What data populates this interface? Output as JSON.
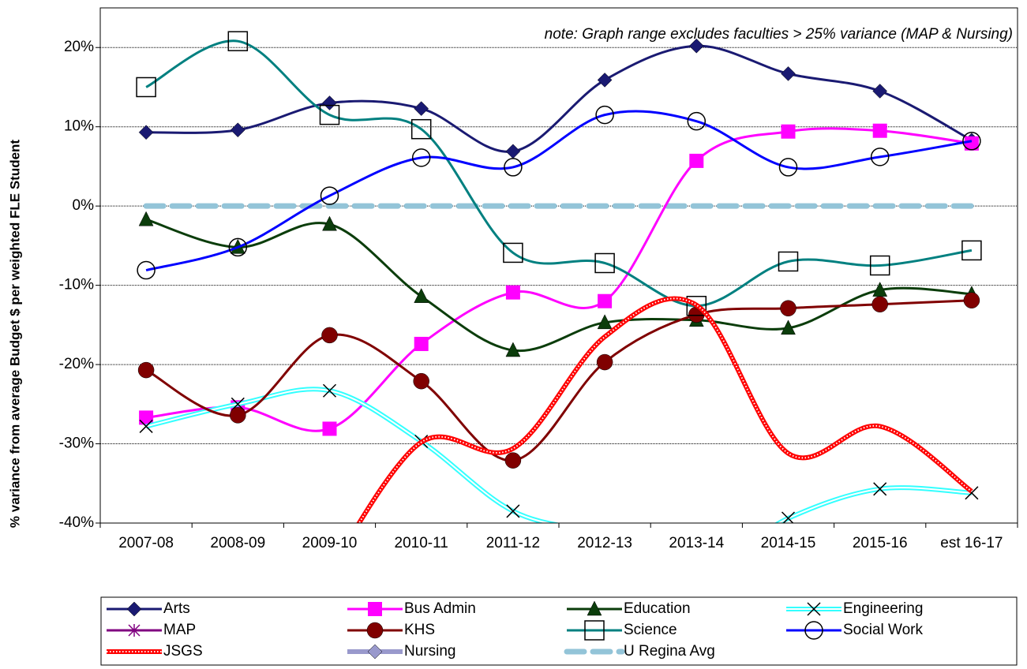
{
  "chart_data": {
    "type": "line",
    "y_label": "% variance from average Budget $ per weighted FLE Student",
    "annotation": "note: Graph range excludes faculties > 25% variance (MAP & Nursing)",
    "categories": [
      "2007-08",
      "2008-09",
      "2009-10",
      "2010-11",
      "2011-12",
      "2012-13",
      "2013-14",
      "2014-15",
      "2015-16",
      "est 16-17"
    ],
    "ylim": [
      -40,
      25
    ],
    "yticks": [
      {
        "value": -40,
        "label": "-40%"
      },
      {
        "value": -30,
        "label": "-30%"
      },
      {
        "value": -20,
        "label": "-20%"
      },
      {
        "value": -10,
        "label": "-10%"
      },
      {
        "value": 0,
        "label": "0%"
      },
      {
        "value": 10,
        "label": "10%"
      },
      {
        "value": 20,
        "label": "20%"
      }
    ],
    "grid": true,
    "smooth": true,
    "series": [
      {
        "name": "Arts",
        "color": "#1a1a72",
        "marker": "diamond",
        "line_style": "solid",
        "values": [
          9.3,
          9.6,
          13,
          12.3,
          6.9,
          15.9,
          20.2,
          16.7,
          14.5,
          8.3
        ]
      },
      {
        "name": "Bus Admin",
        "color": "#ff00ff",
        "marker": "square",
        "line_style": "solid",
        "values": [
          -26.7,
          -25.4,
          -28.1,
          -17.4,
          -10.9,
          -12,
          5.7,
          9.4,
          9.5,
          7.9
        ]
      },
      {
        "name": "Education",
        "color": "#0b3d0b",
        "marker": "triangle",
        "line_style": "solid",
        "values": [
          -1.7,
          -5.2,
          -2.3,
          -11.4,
          -18.2,
          -14.7,
          -14.4,
          -15.4,
          -10.6,
          -11.1
        ]
      },
      {
        "name": "Engineering",
        "color": "#33ffff",
        "marker": "x",
        "line_style": "double",
        "values": [
          -27.8,
          -25,
          -23.3,
          -29.7,
          -38.5,
          -41.5,
          -46,
          -39.4,
          -35.7,
          -36.2
        ]
      },
      {
        "name": "MAP",
        "color": "#800080",
        "marker": "star",
        "line_style": "solid",
        "values": [
          null,
          null,
          null,
          null,
          null,
          null,
          null,
          null,
          null,
          null
        ]
      },
      {
        "name": "KHS",
        "color": "#800000",
        "marker": "circle",
        "line_style": "solid",
        "values": [
          -20.7,
          -26.4,
          -16.3,
          -22.1,
          -32.1,
          -19.7,
          -13.7,
          -12.9,
          -12.4,
          -11.9
        ]
      },
      {
        "name": "Science",
        "color": "#008080",
        "marker": "open-square",
        "line_style": "solid",
        "values": [
          15,
          20.8,
          11.5,
          9.7,
          -5.9,
          -7.2,
          -12.6,
          -7,
          -7.5,
          -5.6
        ]
      },
      {
        "name": "Social Work",
        "color": "#0000ff",
        "marker": "open-circle",
        "line_style": "solid",
        "values": [
          -8.1,
          -5.2,
          1.3,
          6.1,
          4.9,
          11.5,
          10.7,
          4.9,
          6.2,
          8.2
        ]
      },
      {
        "name": "JSGS",
        "color": "#ff0000",
        "marker": "none",
        "line_style": "dotted",
        "values": [
          null,
          null,
          -46,
          -29.8,
          -30.6,
          -16.5,
          -12.5,
          -31.2,
          -27.8,
          -36
        ]
      },
      {
        "name": "Nursing",
        "color": "#9999cc",
        "marker": "diamond",
        "line_style": "solid",
        "values": [
          null,
          null,
          null,
          null,
          null,
          null,
          null,
          null,
          null,
          null
        ]
      },
      {
        "name": "U Regina Avg",
        "color": "#93c4d8",
        "marker": "none",
        "line_style": "dashed",
        "values": [
          0,
          0,
          0,
          0,
          0,
          0,
          0,
          0,
          0,
          0
        ]
      }
    ]
  }
}
